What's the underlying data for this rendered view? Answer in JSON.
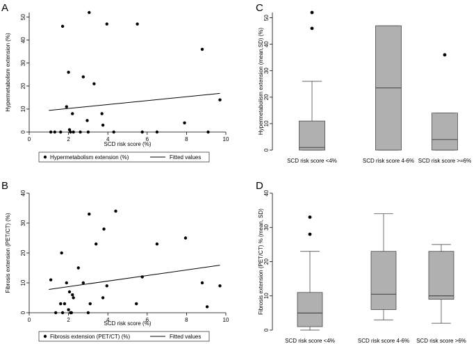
{
  "colors": {
    "box_fill": "#b0b0b0",
    "point": "#000000",
    "background": "#ffffff"
  },
  "chart_data": [
    {
      "panel": "A",
      "type": "scatter",
      "xlabel": "SCD risk score (%)",
      "ylabel": "Hypermetabolism extension (%)",
      "xlim": [
        0,
        10
      ],
      "ylim": [
        0,
        52
      ],
      "xticks": [
        "0",
        "2",
        "4",
        "6",
        "8",
        "10"
      ],
      "yticks": [
        "0",
        "10",
        "20",
        "30",
        "40",
        "50"
      ],
      "legend": {
        "placement": "bottom",
        "entries": [
          "Hypermetabolism extension (%)",
          "Fitted values"
        ]
      },
      "points": [
        [
          1.1,
          0
        ],
        [
          1.3,
          0
        ],
        [
          1.6,
          0
        ],
        [
          1.7,
          46
        ],
        [
          1.9,
          11
        ],
        [
          2.0,
          26
        ],
        [
          2.05,
          1
        ],
        [
          2.1,
          0
        ],
        [
          2.2,
          8
        ],
        [
          2.25,
          0
        ],
        [
          2.6,
          0
        ],
        [
          2.75,
          24
        ],
        [
          2.95,
          5
        ],
        [
          3.0,
          0
        ],
        [
          3.05,
          52
        ],
        [
          3.3,
          21
        ],
        [
          3.7,
          8
        ],
        [
          3.75,
          3
        ],
        [
          3.95,
          47
        ],
        [
          4.3,
          0
        ],
        [
          5.5,
          47
        ],
        [
          5.75,
          0
        ],
        [
          6.5,
          0
        ],
        [
          7.9,
          4
        ],
        [
          8.8,
          36
        ],
        [
          9.1,
          0
        ],
        [
          9.7,
          14
        ]
      ],
      "fit": {
        "x": [
          1.0,
          9.7
        ],
        "y": [
          9.4,
          16.8
        ]
      }
    },
    {
      "panel": "B",
      "type": "scatter",
      "xlabel": "SCD risk score (%)",
      "ylabel": "Fibrosis extension (PET/CT) (%)",
      "xlim": [
        0,
        10
      ],
      "ylim": [
        0,
        40
      ],
      "xticks": [
        "0",
        "2",
        "4",
        "6",
        "8",
        "10"
      ],
      "yticks": [
        "0",
        "10",
        "20",
        "30",
        "40"
      ],
      "legend": {
        "placement": "bottom",
        "entries": [
          "Fibrosis extension (PET/CT) (%)",
          "Fitted values"
        ]
      },
      "points": [
        [
          1.1,
          11
        ],
        [
          1.35,
          0
        ],
        [
          1.6,
          3
        ],
        [
          1.65,
          20
        ],
        [
          1.7,
          0
        ],
        [
          1.8,
          3
        ],
        [
          1.9,
          10
        ],
        [
          2.0,
          1
        ],
        [
          2.05,
          7
        ],
        [
          2.1,
          0
        ],
        [
          2.15,
          0
        ],
        [
          2.2,
          6
        ],
        [
          2.25,
          5
        ],
        [
          2.5,
          15
        ],
        [
          2.75,
          10
        ],
        [
          3.0,
          0
        ],
        [
          3.05,
          33
        ],
        [
          3.1,
          3
        ],
        [
          3.4,
          23
        ],
        [
          3.75,
          5
        ],
        [
          3.8,
          28
        ],
        [
          3.95,
          9
        ],
        [
          4.4,
          34
        ],
        [
          5.45,
          3
        ],
        [
          5.75,
          12
        ],
        [
          6.5,
          23
        ],
        [
          7.95,
          25
        ],
        [
          8.8,
          10
        ],
        [
          9.05,
          2
        ],
        [
          9.7,
          9
        ]
      ],
      "fit": {
        "x": [
          1.0,
          9.7
        ],
        "y": [
          7.8,
          15.9
        ]
      }
    },
    {
      "panel": "C",
      "type": "box",
      "ylabel": "Hypermetabolism extension (mean,SD) (%)",
      "ylim": [
        0,
        52
      ],
      "yticks": [
        "0",
        "10",
        "20",
        "30",
        "40",
        "50"
      ],
      "categories": [
        "SCD risk score <4%",
        "SCD risk score 4-6%",
        "SCD risk score >=6%"
      ],
      "boxes": [
        {
          "low": 0,
          "q1": 0,
          "median": 1,
          "q3": 11,
          "high": 26,
          "outliers": [
            46,
            52
          ]
        },
        {
          "low": 0,
          "q1": 0,
          "median": 23.5,
          "q3": 47,
          "high": 47,
          "outliers": []
        },
        {
          "low": 0,
          "q1": 0,
          "median": 4,
          "q3": 14,
          "high": 14,
          "outliers": [
            36
          ]
        }
      ]
    },
    {
      "panel": "D",
      "type": "box",
      "ylabel": "Fibrosis extension (PET/CT) % (mean, SD)",
      "ylim": [
        0,
        40
      ],
      "yticks": [
        "0",
        "10",
        "20",
        "30",
        "40"
      ],
      "categories": [
        "SCD risk score <4%",
        "SCD risk score 4-6%",
        "SCD risk score >6%"
      ],
      "boxes": [
        {
          "low": 0,
          "q1": 1,
          "median": 5,
          "q3": 11,
          "high": 23,
          "outliers": [
            28,
            33
          ]
        },
        {
          "low": 3,
          "q1": 6,
          "median": 10.5,
          "q3": 23,
          "high": 34,
          "outliers": []
        },
        {
          "low": 2,
          "q1": 9,
          "median": 10,
          "q3": 23,
          "high": 25,
          "outliers": []
        }
      ]
    }
  ]
}
